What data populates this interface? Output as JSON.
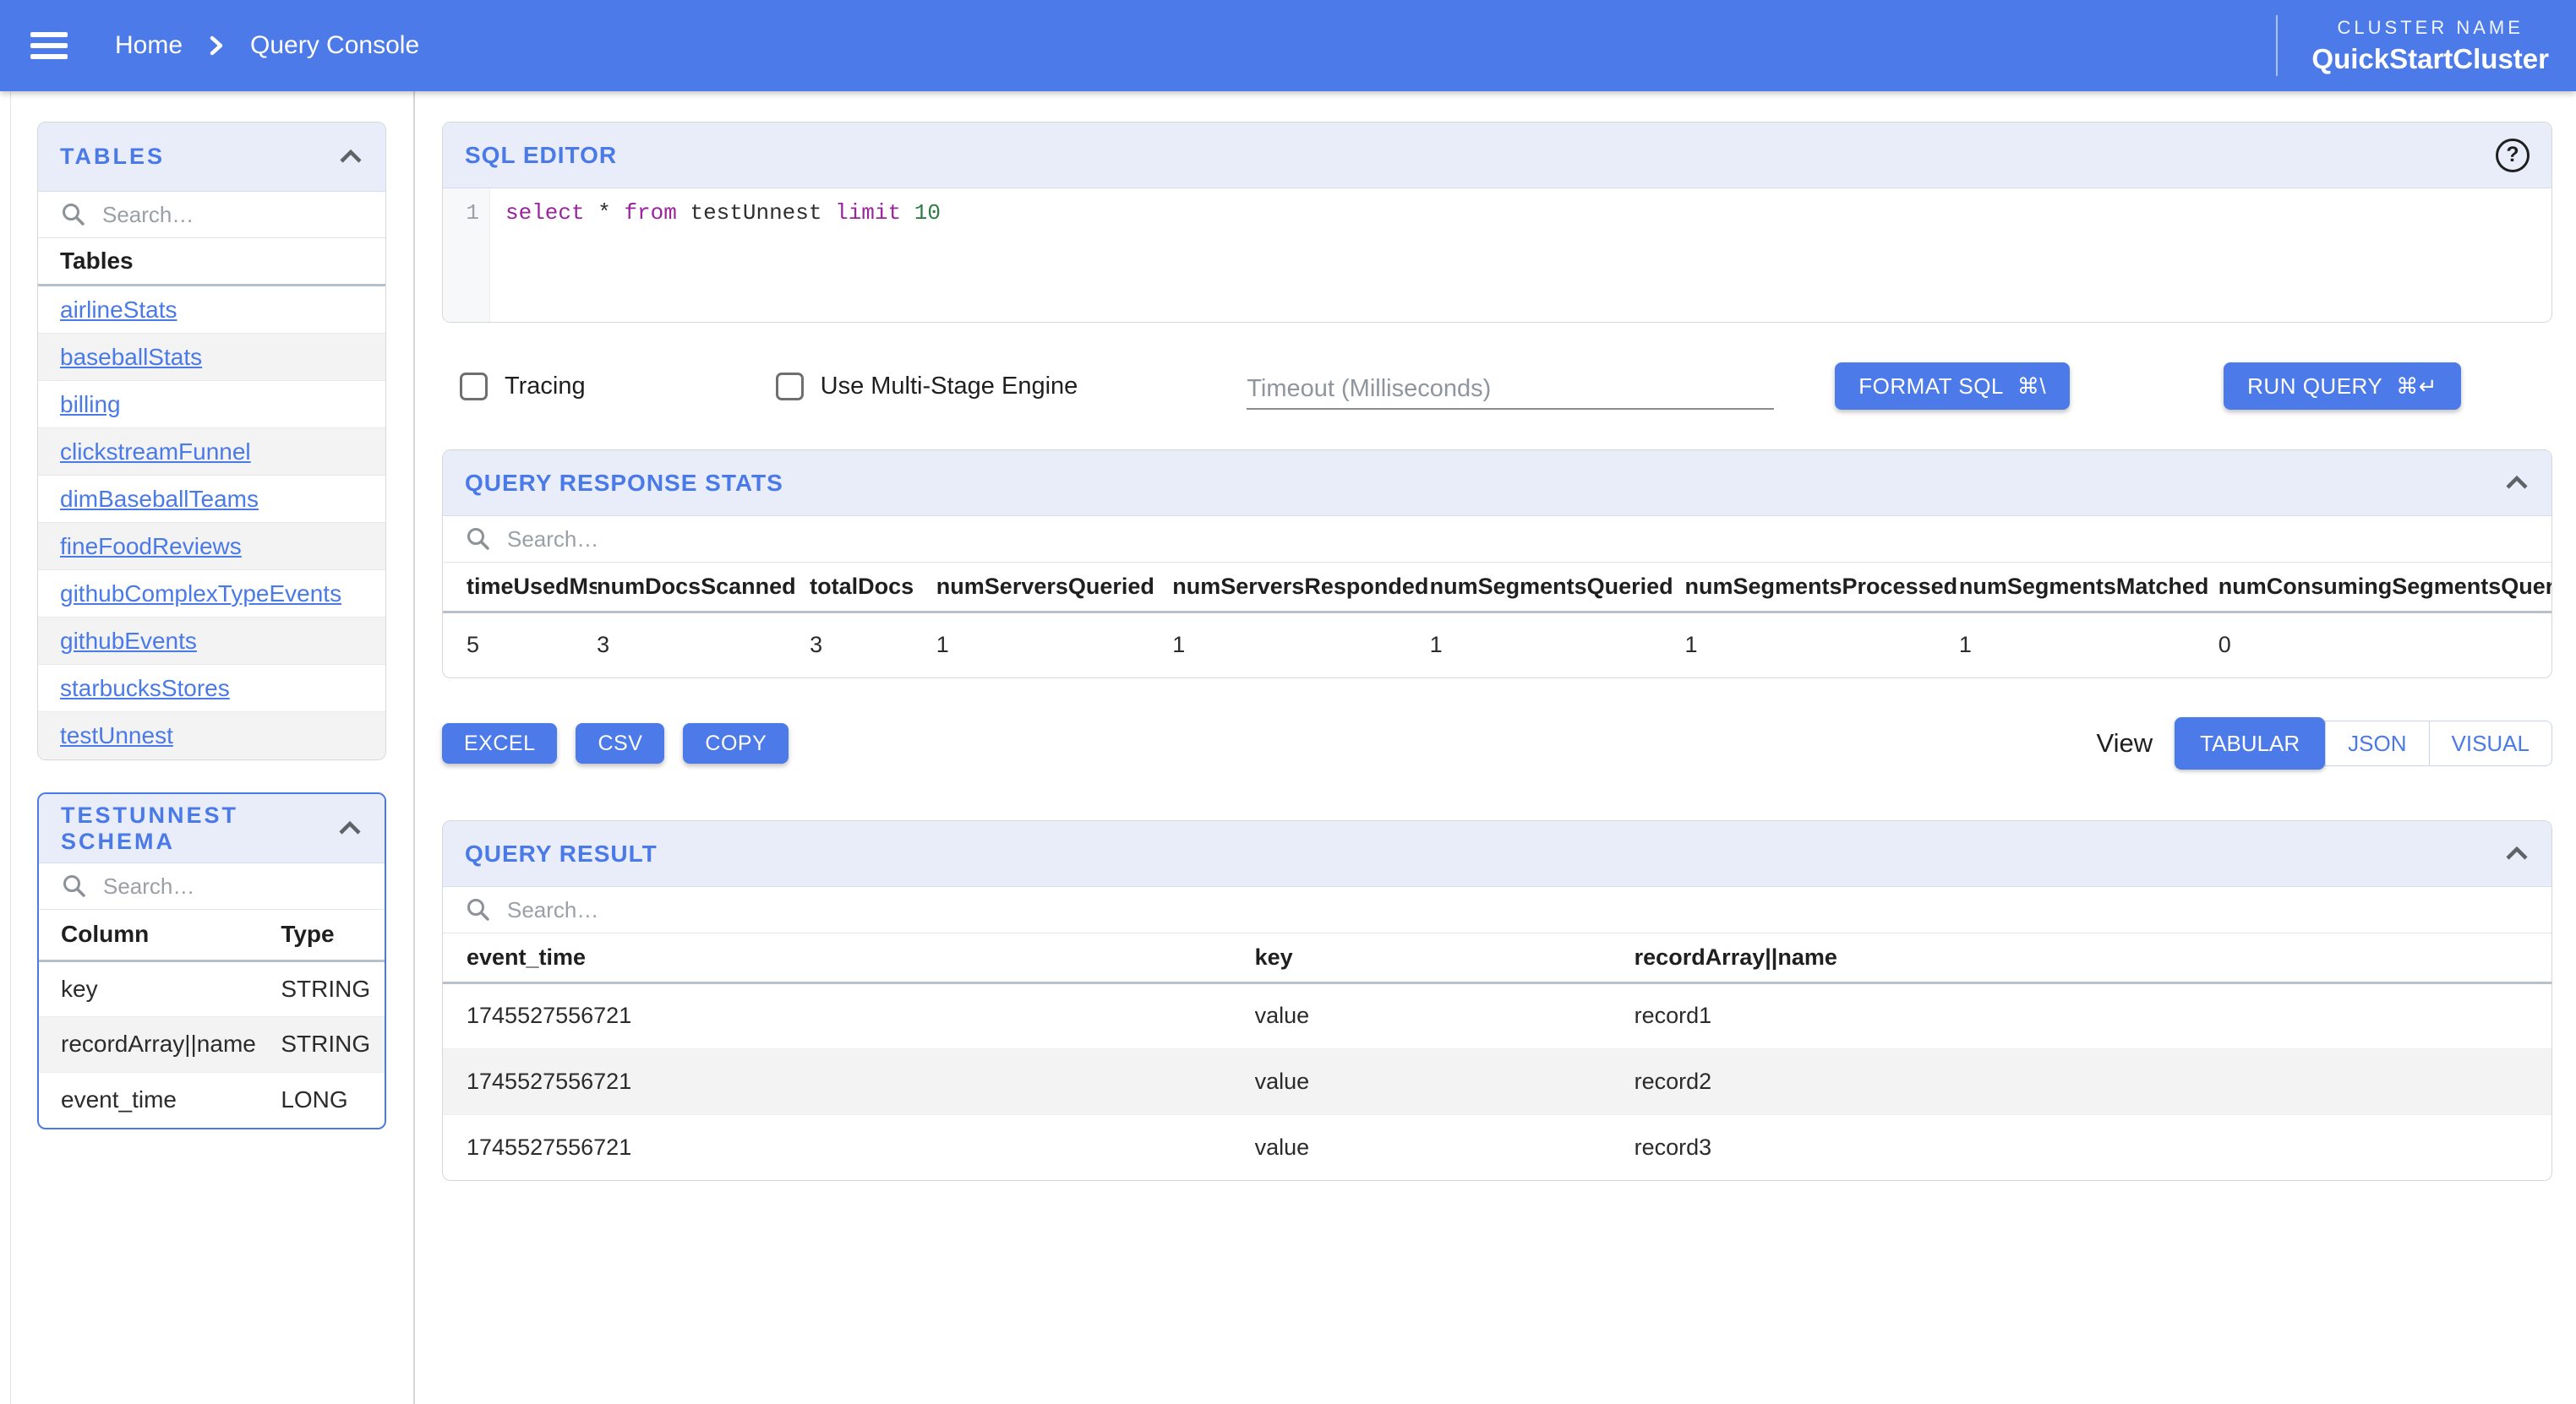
{
  "header": {
    "breadcrumb_home": "Home",
    "breadcrumb_current": "Query Console",
    "cluster_label": "CLUSTER NAME",
    "cluster_name": "QuickStartCluster"
  },
  "colors": {
    "primary_blue": "#4d7ae9",
    "panel_header_bg": "#e9edf9",
    "link_blue": "#4a79e8",
    "stripe_gray": "#f3f3f3",
    "keyword_purple": "#99249d",
    "number_green": "#2e7d46"
  },
  "sidebar": {
    "tables_panel": {
      "title": "TABLES",
      "search_placeholder": "Search…",
      "list_header": "Tables",
      "tables": [
        "airlineStats",
        "baseballStats",
        "billing",
        "clickstreamFunnel",
        "dimBaseballTeams",
        "fineFoodReviews",
        "githubComplexTypeEvents",
        "githubEvents",
        "starbucksStores",
        "testUnnest"
      ]
    },
    "schema_panel": {
      "title": "TESTUNNEST SCHEMA",
      "search_placeholder": "Search…",
      "column_header": "Column",
      "type_header": "Type",
      "rows": [
        {
          "column": "key",
          "type": "STRING"
        },
        {
          "column": "recordArray||name",
          "type": "STRING"
        },
        {
          "column": "event_time",
          "type": "LONG"
        }
      ]
    }
  },
  "sql_editor": {
    "title": "SQL EDITOR",
    "help_glyph": "?",
    "line_number": "1",
    "query": "select * from testUnnest limit 10",
    "tokens": [
      {
        "text": "select",
        "type": "keyword"
      },
      {
        "text": " * ",
        "type": "plain"
      },
      {
        "text": "from",
        "type": "keyword"
      },
      {
        "text": " testUnnest ",
        "type": "plain"
      },
      {
        "text": "limit",
        "type": "keyword"
      },
      {
        "text": " ",
        "type": "plain"
      },
      {
        "text": "10",
        "type": "number"
      }
    ]
  },
  "controls": {
    "tracing_label": "Tracing",
    "multistage_label": "Use Multi-Stage Engine",
    "timeout_placeholder": "Timeout (Milliseconds)",
    "format_button": {
      "label": "FORMAT SQL",
      "shortcut": "⌘\\"
    },
    "run_button": {
      "label": "RUN QUERY",
      "shortcut": "⌘↵"
    }
  },
  "stats_panel": {
    "title": "QUERY RESPONSE STATS",
    "search_placeholder": "Search…",
    "headers": [
      "timeUsedMs",
      "numDocsScanned",
      "totalDocs",
      "numServersQueried",
      "numServersResponded",
      "numSegmentsQueried",
      "numSegmentsProcessed",
      "numSegmentsMatched",
      "numConsumingSegmentsQueried"
    ],
    "values": [
      "5",
      "3",
      "3",
      "1",
      "1",
      "1",
      "1",
      "1",
      "0"
    ]
  },
  "export_bar": {
    "buttons": [
      "EXCEL",
      "CSV",
      "COPY"
    ],
    "view_label": "View",
    "view_options": [
      "TABULAR",
      "JSON",
      "VISUAL"
    ],
    "active_view": "TABULAR"
  },
  "result_panel": {
    "title": "QUERY RESULT",
    "search_placeholder": "Search…",
    "headers": [
      "event_time",
      "key",
      "recordArray||name"
    ],
    "rows": [
      [
        "1745527556721",
        "value",
        "record1"
      ],
      [
        "1745527556721",
        "value",
        "record2"
      ],
      [
        "1745527556721",
        "value",
        "record3"
      ]
    ]
  }
}
